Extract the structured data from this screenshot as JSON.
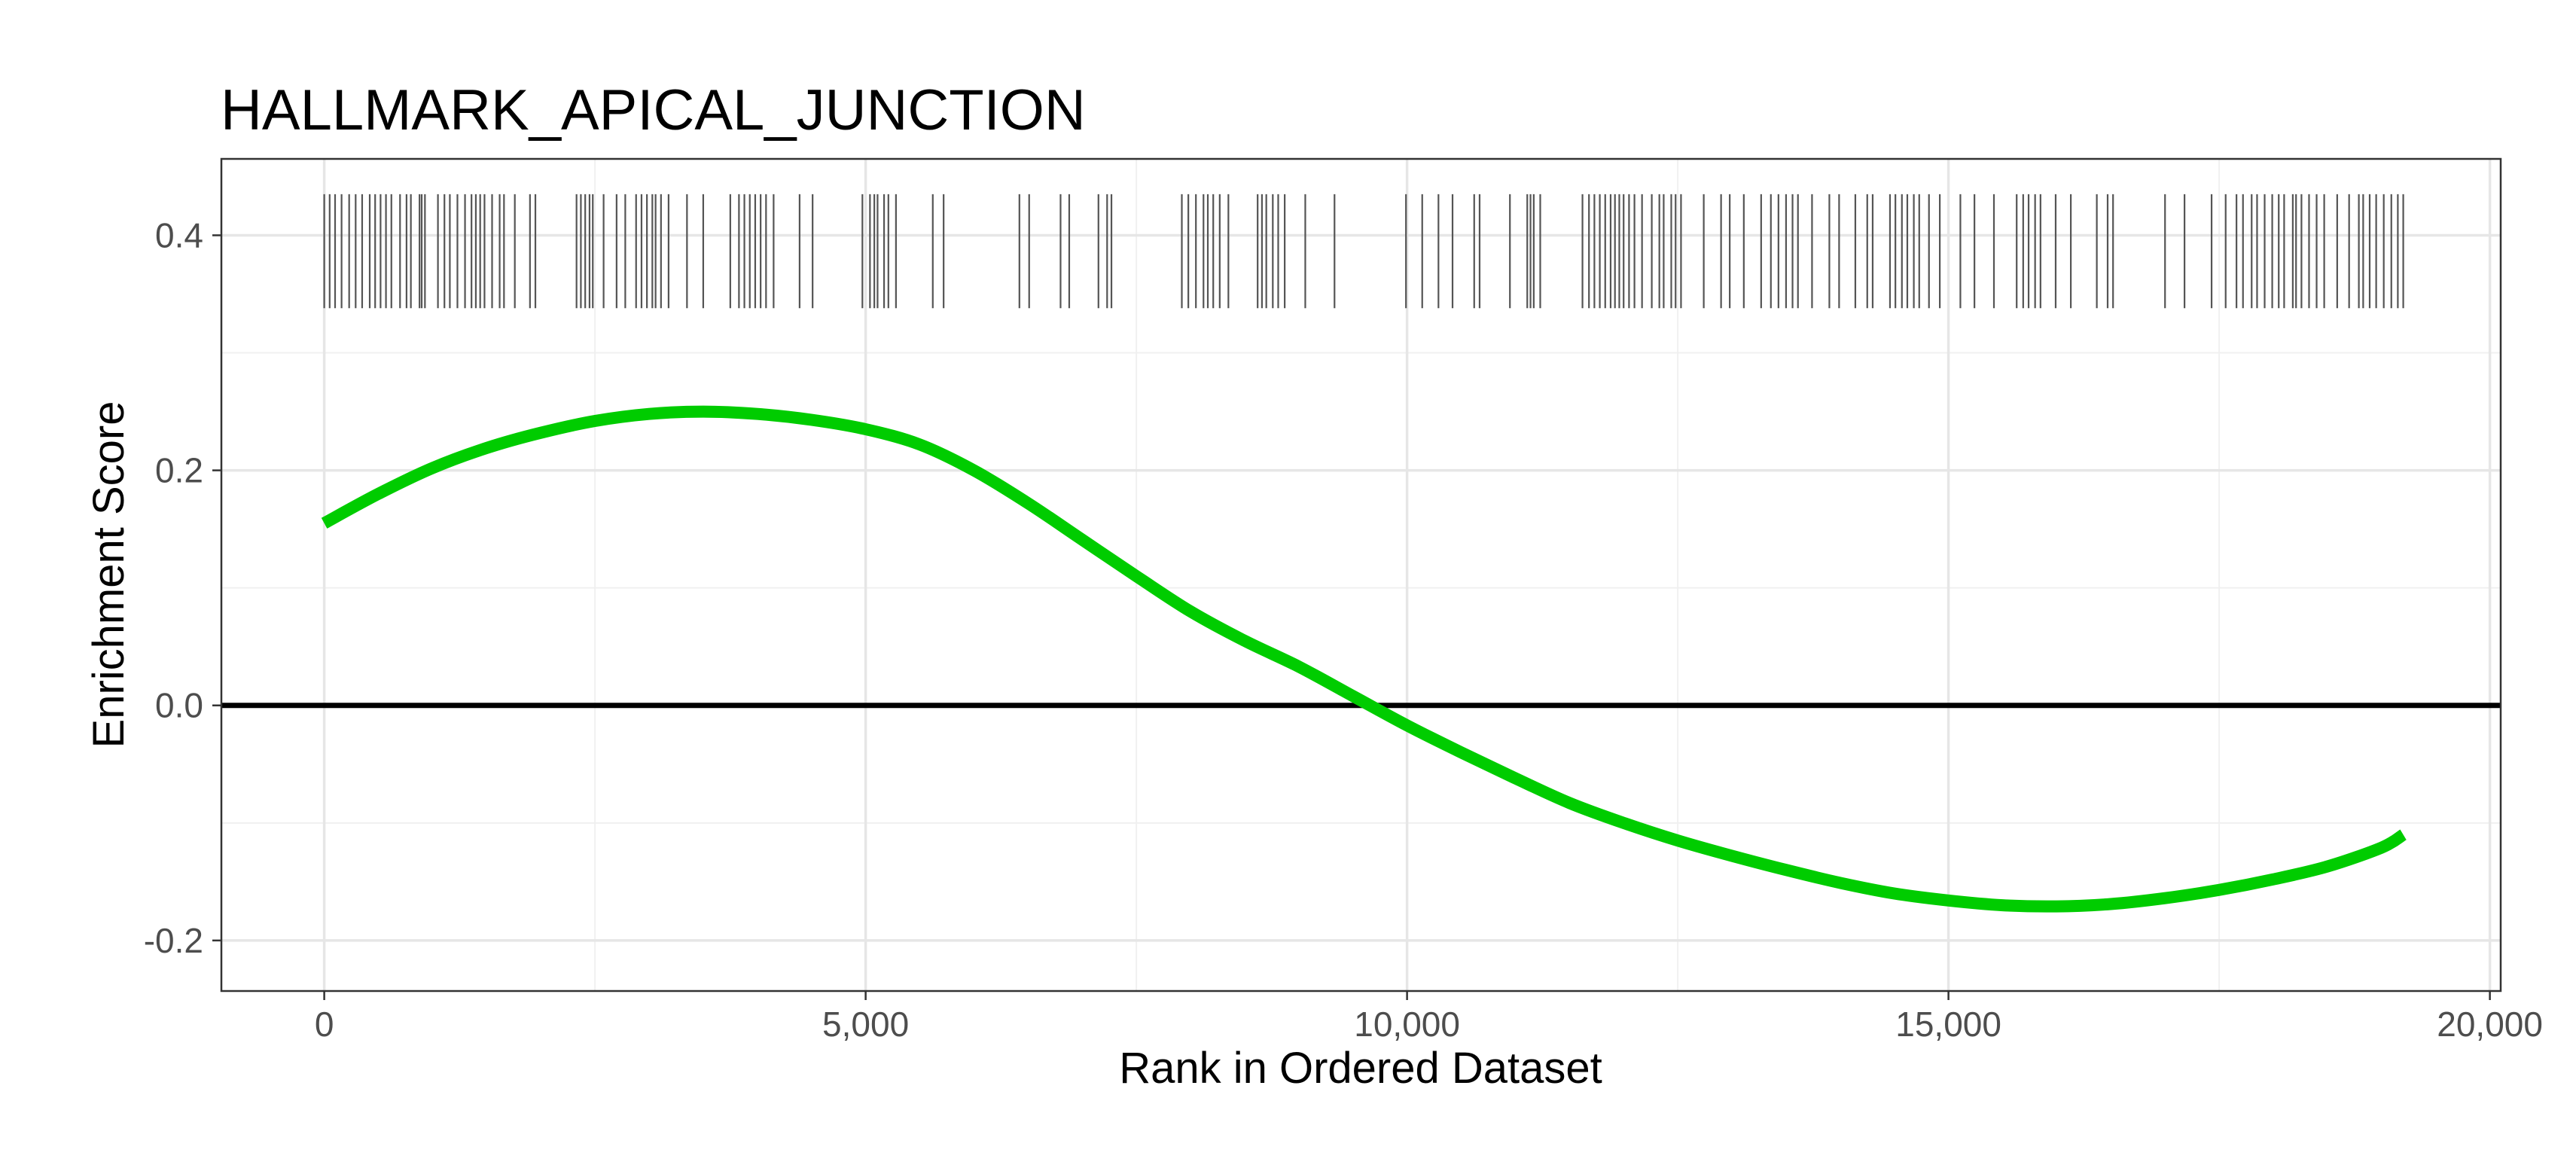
{
  "chart_data": {
    "type": "line",
    "title": "HALLMARK_APICAL_JUNCTION",
    "xlabel": "Rank in Ordered Dataset",
    "ylabel": "Enrichment Score",
    "xlim": [
      -950,
      20100
    ],
    "ylim": [
      -0.243,
      0.465
    ],
    "x_ticks": [
      0,
      5000,
      10000,
      15000,
      20000
    ],
    "x_tick_labels": [
      "0",
      "5,000",
      "10,000",
      "15,000",
      "20,000"
    ],
    "y_ticks": [
      -0.2,
      0.0,
      0.2,
      0.4
    ],
    "y_tick_labels": [
      "-0.2",
      "0.0",
      "0.2",
      "0.4"
    ],
    "grid": true,
    "reference_line_y": 0,
    "series": [
      {
        "color": "#00cc00",
        "x": [
          0,
          500,
          1000,
          1500,
          2000,
          2500,
          3000,
          3500,
          4000,
          4500,
          5000,
          5500,
          6000,
          6500,
          7000,
          7500,
          8000,
          8500,
          9000,
          9500,
          10000,
          10500,
          11000,
          11500,
          12000,
          12500,
          13000,
          13500,
          14000,
          14500,
          15000,
          15500,
          16000,
          16500,
          17000,
          17500,
          18000,
          18500,
          19000,
          19200
        ],
        "y": [
          0.155,
          0.18,
          0.202,
          0.219,
          0.232,
          0.242,
          0.248,
          0.25,
          0.248,
          0.243,
          0.235,
          0.222,
          0.2,
          0.172,
          0.141,
          0.11,
          0.08,
          0.055,
          0.033,
          0.008,
          -0.017,
          -0.04,
          -0.062,
          -0.083,
          -0.1,
          -0.115,
          -0.128,
          -0.14,
          -0.151,
          -0.16,
          -0.166,
          -0.17,
          -0.171,
          -0.169,
          -0.164,
          -0.157,
          -0.148,
          -0.137,
          -0.121,
          -0.11
        ]
      }
    ],
    "rug": {
      "color": "#555555",
      "y_range": [
        0.338,
        0.435
      ],
      "positions": [
        0,
        50,
        100,
        160,
        230,
        290,
        350,
        420,
        470,
        520,
        570,
        620,
        700,
        760,
        800,
        880,
        900,
        930,
        1050,
        1110,
        1160,
        1230,
        1300,
        1360,
        1400,
        1440,
        1480,
        1550,
        1620,
        1660,
        1760,
        1900,
        1950,
        2330,
        2370,
        2410,
        2450,
        2480,
        2580,
        2700,
        2780,
        2880,
        2930,
        2980,
        3030,
        3060,
        3110,
        3180,
        3350,
        3500,
        3750,
        3830,
        3880,
        3930,
        3980,
        4030,
        4080,
        4150,
        4390,
        4510,
        4970,
        5040,
        5080,
        5110,
        5170,
        5210,
        5280,
        5620,
        5720,
        6420,
        6510,
        6800,
        6880,
        7150,
        7230,
        7270,
        7920,
        7980,
        8050,
        8120,
        8160,
        8210,
        8270,
        8350,
        8620,
        8660,
        8700,
        8760,
        8810,
        8870,
        9060,
        9330,
        9990,
        10140,
        10290,
        10420,
        10620,
        10670,
        10950,
        11110,
        11140,
        11170,
        11230,
        11620,
        11680,
        11730,
        11780,
        11830,
        11880,
        11920,
        11960,
        12000,
        12050,
        12100,
        12170,
        12260,
        12330,
        12370,
        12440,
        12480,
        12530,
        12740,
        12900,
        12980,
        13110,
        13270,
        13360,
        13430,
        13500,
        13560,
        13610,
        13740,
        13900,
        13990,
        14140,
        14250,
        14300,
        14460,
        14510,
        14570,
        14620,
        14680,
        14730,
        14820,
        14920,
        15110,
        15240,
        15420,
        15630,
        15690,
        15740,
        15800,
        15850,
        15990,
        16130,
        16370,
        16470,
        16520,
        17000,
        17180,
        17430,
        17560,
        17660,
        17720,
        17800,
        17850,
        17920,
        17990,
        18050,
        18100,
        18180,
        18210,
        18260,
        18330,
        18400,
        18470,
        18590,
        18700,
        18790,
        18830,
        18890,
        18950,
        19020,
        19090,
        19150,
        19200
      ]
    }
  }
}
